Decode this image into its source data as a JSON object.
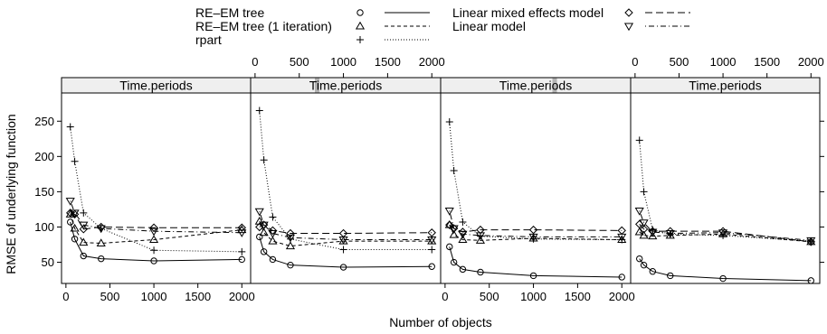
{
  "chart_data": {
    "type": "line",
    "layout": "lattice, 4 panels in one row",
    "ylabel": "RMSE of underlying function",
    "xlabel": "Number of objects",
    "x": [
      50,
      100,
      200,
      400,
      1000,
      2000
    ],
    "xlim": [
      -50,
      2100
    ],
    "ylim": [
      20,
      290
    ],
    "xticks": [
      0,
      500,
      1000,
      1500,
      2000
    ],
    "yticks": [
      50,
      100,
      150,
      200,
      250
    ],
    "x_axis_top_panels": [
      2,
      4
    ],
    "x_axis_bottom_panels": [
      1,
      3
    ],
    "y_axis_right_panel": 4,
    "legend": {
      "placement": "top",
      "entries": [
        {
          "label": "RE–EM tree",
          "symbol": "circle",
          "line": "solid"
        },
        {
          "label": "RE–EM tree (1 iteration)",
          "symbol": "triangle-up",
          "line": "dashed"
        },
        {
          "label": "rpart",
          "symbol": "plus",
          "line": "dotted"
        },
        {
          "label": "Linear mixed effects model",
          "symbol": "diamond",
          "line": "longdash"
        },
        {
          "label": "Linear model",
          "symbol": "triangle-down",
          "line": "dotdash"
        }
      ]
    },
    "panels": [
      {
        "strip": "Time.periods",
        "strip_indicator": null,
        "series": [
          {
            "symbol": "circle",
            "line": "solid",
            "values": [
              107,
              83,
              59,
              55,
              52,
              54
            ]
          },
          {
            "symbol": "triangle-up",
            "line": "dashed",
            "values": [
              118,
              98,
              78,
              77,
              82,
              96
            ]
          },
          {
            "symbol": "plus",
            "line": "dotted",
            "values": [
              242,
              193,
              120,
              98,
              67,
              65
            ]
          },
          {
            "symbol": "diamond",
            "line": "longdash",
            "values": [
              120,
              118,
              97,
              100,
              99,
              99
            ]
          },
          {
            "symbol": "triangle-down",
            "line": "dotdash",
            "values": [
              137,
              120,
              103,
              98,
              94,
              92
            ]
          }
        ]
      },
      {
        "strip": "Time.periods",
        "strip_indicator": 0.35,
        "series": [
          {
            "symbol": "circle",
            "line": "solid",
            "values": [
              86,
              65,
              54,
              46,
              43,
              44
            ]
          },
          {
            "symbol": "triangle-up",
            "line": "dashed",
            "values": [
              108,
              92,
              80,
              73,
              80,
              80
            ]
          },
          {
            "symbol": "plus",
            "line": "dotted",
            "values": [
              265,
              195,
              114,
              83,
              68,
              68
            ]
          },
          {
            "symbol": "diamond",
            "line": "longdash",
            "values": [
              100,
              103,
              95,
              91,
              91,
              92
            ]
          },
          {
            "symbol": "triangle-down",
            "line": "dotdash",
            "values": [
              122,
              103,
              91,
              85,
              82,
              82
            ]
          }
        ]
      },
      {
        "strip": "Time.periods",
        "strip_indicator": 0.6,
        "series": [
          {
            "symbol": "circle",
            "line": "solid",
            "values": [
              72,
              50,
              40,
              36,
              31,
              29
            ]
          },
          {
            "symbol": "triangle-up",
            "line": "dashed",
            "values": [
              103,
              89,
              82,
              81,
              84,
              82
            ]
          },
          {
            "symbol": "plus",
            "line": "dotted",
            "values": [
              249,
              180,
              107,
              87,
              83,
              82
            ]
          },
          {
            "symbol": "diamond",
            "line": "longdash",
            "values": [
              103,
              98,
              93,
              96,
              96,
              95
            ]
          },
          {
            "symbol": "triangle-down",
            "line": "dotdash",
            "values": [
              123,
              98,
              90,
              88,
              86,
              86
            ]
          }
        ]
      },
      {
        "strip": "Time.periods",
        "strip_indicator": null,
        "series": [
          {
            "symbol": "circle",
            "line": "solid",
            "values": [
              55,
              46,
              37,
              31,
              27,
              24
            ]
          },
          {
            "symbol": "triangle-up",
            "line": "dashed",
            "values": [
              93,
              88,
              87,
              88,
              90,
              79
            ]
          },
          {
            "symbol": "plus",
            "line": "dotted",
            "values": [
              223,
              150,
              96,
              90,
              88,
              80
            ]
          },
          {
            "symbol": "diamond",
            "line": "longdash",
            "values": [
              104,
              97,
              94,
              94,
              94,
              79
            ]
          },
          {
            "symbol": "triangle-down",
            "line": "dotdash",
            "values": [
              123,
              106,
              93,
              91,
              92,
              81
            ]
          }
        ]
      }
    ]
  }
}
